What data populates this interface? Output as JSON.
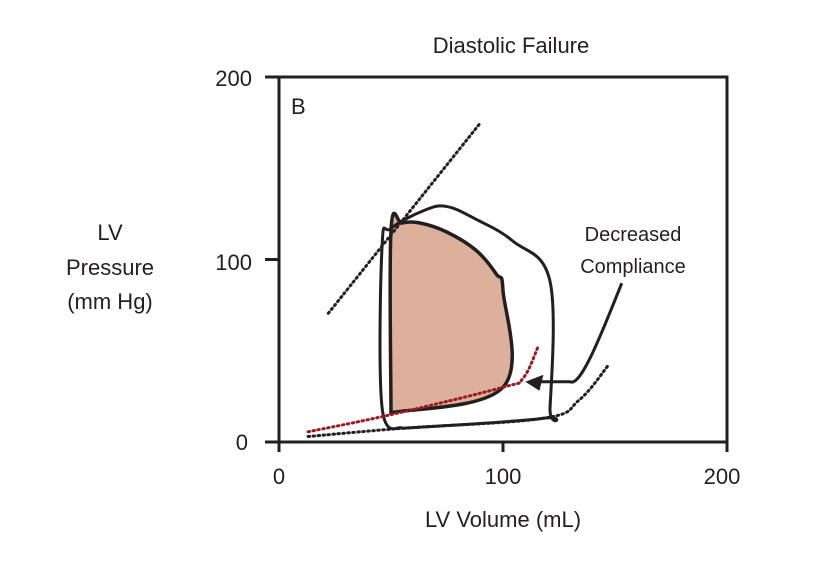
{
  "chart_data": {
    "type": "line",
    "title": "Diastolic Failure",
    "panel_label": "B",
    "xlabel": "LV Volume (mL)",
    "ylabel": [
      "LV",
      "Pressure",
      "(mm Hg)"
    ],
    "xlim": [
      0,
      200
    ],
    "ylim": [
      0,
      200
    ],
    "xticks": [
      "0",
      "100",
      "200"
    ],
    "yticks": [
      "0",
      "100",
      "200"
    ],
    "grid": false,
    "annotation": {
      "text": [
        "Decreased",
        "Compliance"
      ],
      "arrow_path": [
        [
          153,
          87
        ],
        [
          143,
          56
        ],
        [
          130,
          33
        ],
        [
          110,
          33
        ]
      ]
    },
    "series": [
      {
        "style": "filled-loop",
        "fill": "#dcb09b",
        "points": [
          [
            50,
            16
          ],
          [
            50,
            116
          ],
          [
            55,
            120
          ],
          [
            63,
            120
          ],
          [
            75,
            115
          ],
          [
            88,
            105
          ],
          [
            97,
            92
          ],
          [
            100,
            83
          ],
          [
            100,
            30
          ],
          [
            50,
            16
          ]
        ]
      },
      {
        "style": "solid-loop",
        "points": [
          [
            55,
            7.5
          ],
          [
            118,
            13
          ],
          [
            121,
            19
          ],
          [
            121,
            88
          ],
          [
            104.5,
            110
          ],
          [
            88,
            122
          ],
          [
            75,
            129
          ],
          [
            65,
            127
          ],
          [
            50,
            117
          ],
          [
            46,
            107
          ],
          [
            46,
            19
          ],
          [
            55,
            7.5
          ]
        ]
      },
      {
        "style": "dotted",
        "color": "#9b1b1f",
        "points": [
          [
            13,
            5.6
          ],
          [
            50,
            15
          ],
          [
            100,
            30
          ],
          [
            109,
            35
          ],
          [
            115.6,
            52
          ]
        ]
      },
      {
        "style": "dotted",
        "color": "#231f20",
        "points": [
          [
            22,
            70.5
          ],
          [
            90,
            175
          ]
        ]
      },
      {
        "style": "dotted",
        "color": "#231f20",
        "points": [
          [
            13,
            3
          ],
          [
            55,
            7.5
          ],
          [
            118,
            13
          ],
          [
            134,
            23
          ],
          [
            147,
            42
          ]
        ]
      }
    ]
  }
}
